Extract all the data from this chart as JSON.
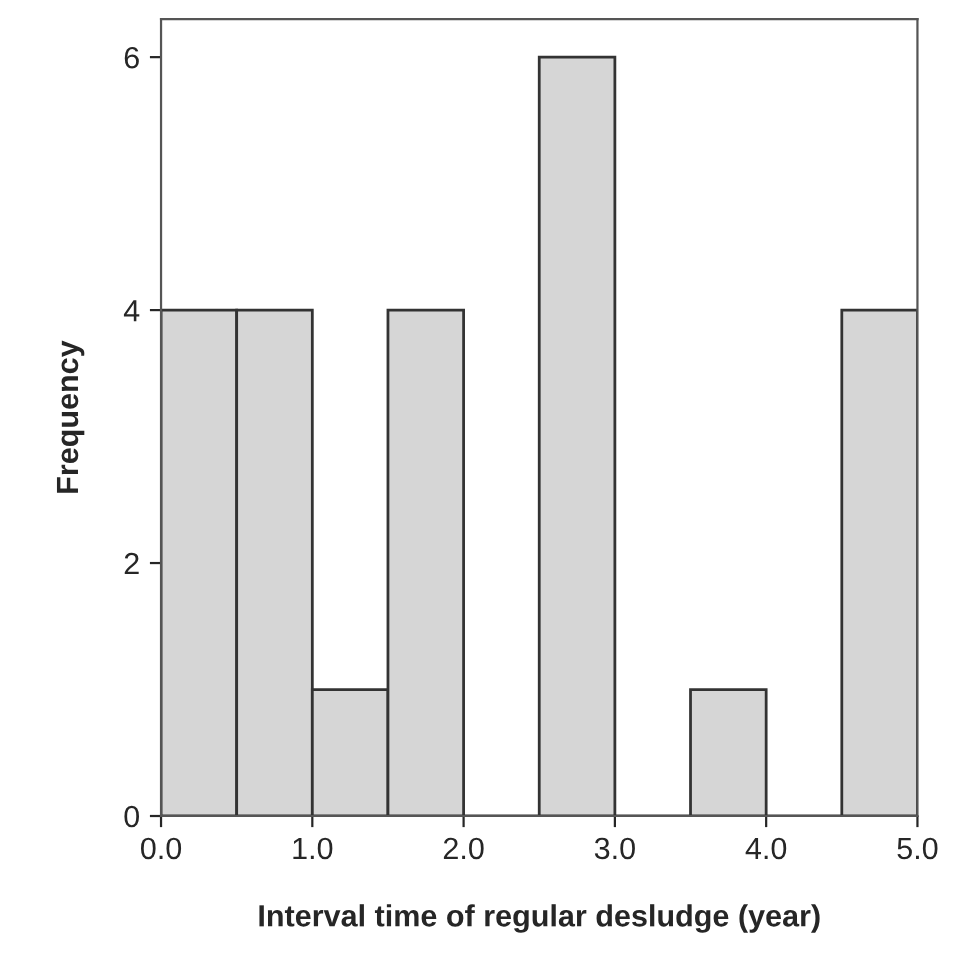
{
  "chart_data": {
    "type": "histogram",
    "xlabel": "Interval time of regular desludge (year)",
    "ylabel": "Frequency",
    "bins": [
      0,
      0.5,
      1,
      1.5,
      2,
      2.5,
      3,
      3.5,
      4,
      4.5,
      5
    ],
    "values": [
      4,
      4,
      1,
      4,
      0,
      6,
      0,
      1,
      0,
      4
    ],
    "color": "#d6d6d6",
    "xlim": [
      0,
      5
    ],
    "ylim": [
      0,
      6.3
    ],
    "xticks": [
      {
        "value": 0,
        "label": "0.0"
      },
      {
        "value": 1,
        "label": "1.0"
      },
      {
        "value": 2,
        "label": "2.0"
      },
      {
        "value": 3,
        "label": "3.0"
      },
      {
        "value": 4,
        "label": "4.0"
      },
      {
        "value": 5,
        "label": "5.0"
      }
    ],
    "yticks": [
      0,
      2,
      4,
      6
    ],
    "grid": false
  }
}
